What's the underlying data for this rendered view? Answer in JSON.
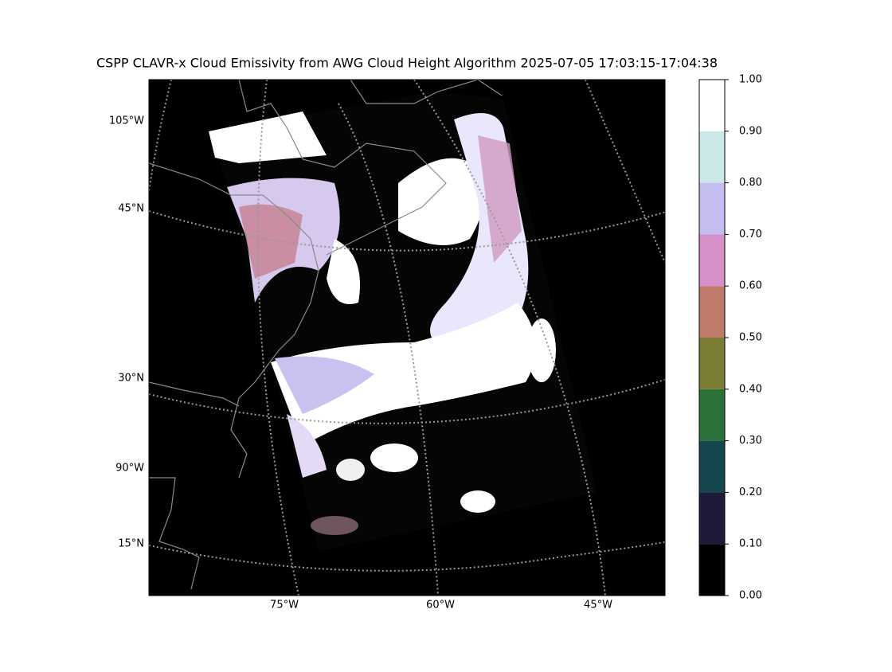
{
  "title": "CSPP CLAVR-x Cloud Emissivity from AWG Cloud Height Algorithm 2025-07-05 17:03:15-17:04:38",
  "map": {
    "lon_labels": [
      "75°W",
      "60°W",
      "45°W"
    ],
    "lat_labels": [
      "105°W",
      "45°N",
      "30°N",
      "90°W",
      "15°N"
    ]
  },
  "colorbar": {
    "lim": [
      0,
      1
    ],
    "ticks": [
      {
        "value": 0,
        "label": "0.00"
      },
      {
        "value": 0.1,
        "label": "0.10"
      },
      {
        "value": 0.2,
        "label": "0.20"
      },
      {
        "value": 0.3,
        "label": "0.30"
      },
      {
        "value": 0.4,
        "label": "0.40"
      },
      {
        "value": 0.5,
        "label": "0.50"
      },
      {
        "value": 0.6,
        "label": "0.60"
      },
      {
        "value": 0.7,
        "label": "0.70"
      },
      {
        "value": 0.8,
        "label": "0.80"
      },
      {
        "value": 0.9,
        "label": "0.90"
      },
      {
        "value": 1,
        "label": "1.00"
      }
    ],
    "colors": [
      "#000000",
      "#1e1a3a",
      "#17474e",
      "#2d7039",
      "#7b7d35",
      "#c07a6b",
      "#d590c7",
      "#c4bdf0",
      "#cce9ea",
      "#ffffff"
    ]
  }
}
